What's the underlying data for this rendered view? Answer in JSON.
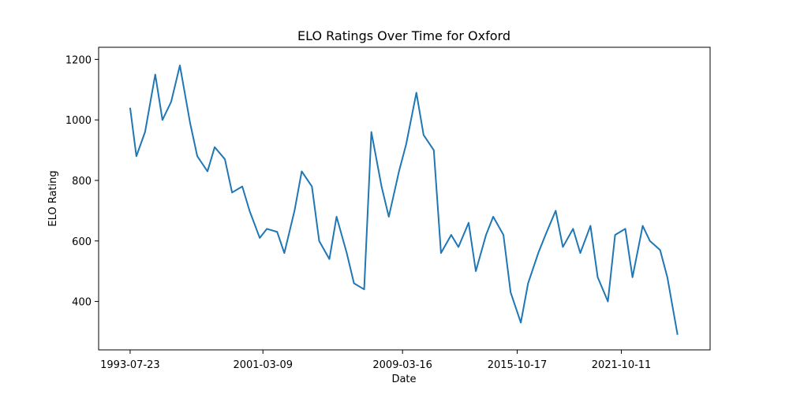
{
  "chart_data": {
    "type": "line",
    "title": "ELO Ratings Over Time for Oxford",
    "xlabel": "Date",
    "ylabel": "ELO Rating",
    "x_ticks": [
      "1993-07-23",
      "2001-03-09",
      "2009-03-16",
      "2015-10-17",
      "2021-10-11"
    ],
    "y_ticks": [
      400,
      600,
      800,
      1000,
      1200
    ],
    "xlim": [
      "1991-10-01",
      "2026-11-15"
    ],
    "ylim": [
      240,
      1240
    ],
    "grid": false,
    "line_color": "#1f77b4",
    "series": [
      {
        "x": [
          "1993-07-23",
          "1993-12-01",
          "1994-06-01",
          "1995-01-01",
          "1995-06-01",
          "1995-12-01",
          "1996-06-01",
          "1997-01-01",
          "1997-06-01",
          "1998-01-01",
          "1998-06-01",
          "1999-01-01",
          "1999-06-01",
          "2000-01-01",
          "2000-06-01",
          "2001-01-01",
          "2001-06-01",
          "2002-01-01",
          "2002-06-01",
          "2003-01-01",
          "2003-06-01",
          "2004-01-01",
          "2004-06-01",
          "2005-01-01",
          "2005-06-01",
          "2006-01-01",
          "2006-06-01",
          "2007-01-01",
          "2007-06-01",
          "2008-01-01",
          "2008-06-01",
          "2009-01-01",
          "2009-06-01",
          "2010-01-01",
          "2010-06-01",
          "2011-01-01",
          "2011-06-01",
          "2012-01-01",
          "2012-06-01",
          "2013-01-01",
          "2013-06-01",
          "2014-01-01",
          "2014-06-01",
          "2015-01-01",
          "2015-06-01",
          "2016-01-01",
          "2016-06-01",
          "2017-01-01",
          "2017-06-01",
          "2018-01-01",
          "2018-06-01",
          "2019-01-01",
          "2019-06-01",
          "2020-01-01",
          "2020-06-01",
          "2021-01-01",
          "2021-06-01",
          "2022-01-01",
          "2022-06-01",
          "2023-01-01",
          "2023-06-01",
          "2024-01-01",
          "2024-06-01",
          "2025-01-01"
        ],
        "y": [
          1040,
          880,
          960,
          1150,
          1000,
          1060,
          1180,
          990,
          880,
          830,
          910,
          870,
          760,
          780,
          700,
          610,
          640,
          630,
          560,
          700,
          830,
          780,
          600,
          540,
          680,
          560,
          460,
          440,
          960,
          780,
          680,
          830,
          920,
          1090,
          950,
          900,
          560,
          620,
          580,
          660,
          500,
          620,
          680,
          620,
          430,
          330,
          460,
          560,
          620,
          700,
          580,
          640,
          560,
          650,
          480,
          400,
          620,
          640,
          480,
          650,
          600,
          570,
          480,
          290
        ]
      }
    ]
  }
}
